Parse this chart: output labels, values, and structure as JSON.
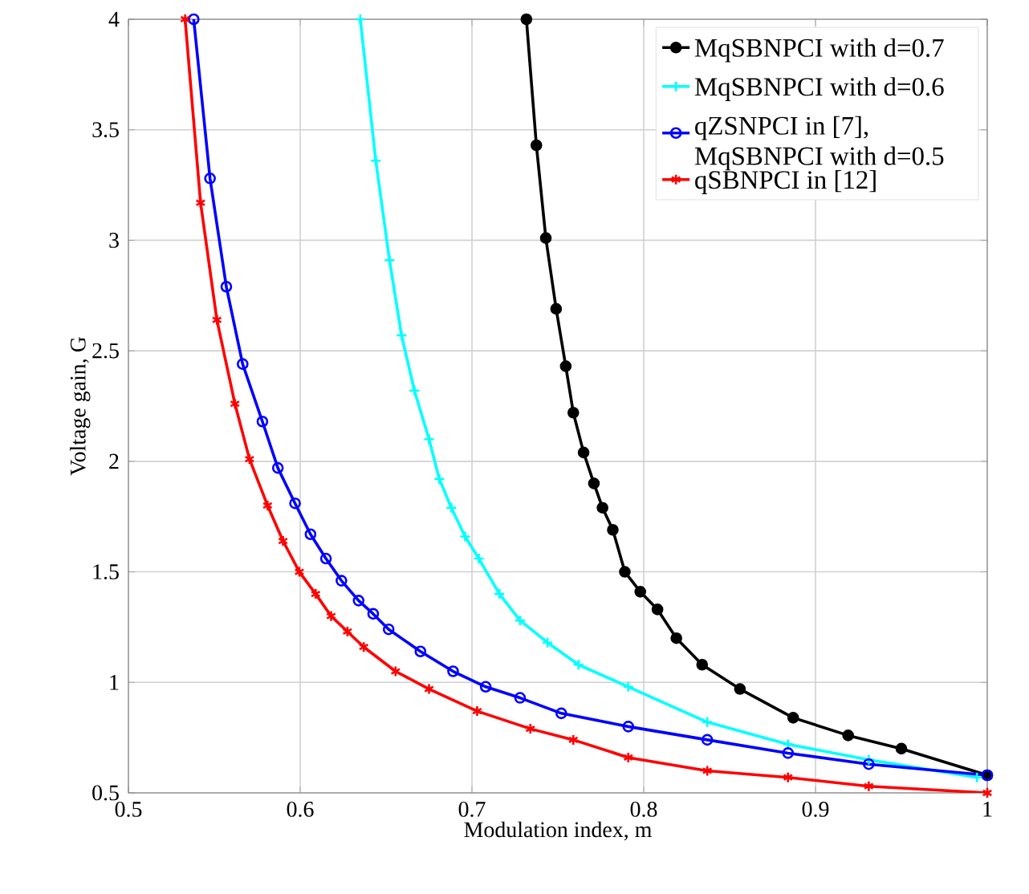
{
  "chart_data": {
    "type": "line",
    "xlabel": "Modulation index, m",
    "ylabel": "Voltage gain, G",
    "xlim": [
      0.5,
      1
    ],
    "ylim": [
      0.5,
      4
    ],
    "xticks": [
      0.5,
      0.6,
      0.7,
      0.8,
      0.9,
      1
    ],
    "yticks": [
      0.5,
      1,
      1.5,
      2,
      2.5,
      3,
      3.5,
      4
    ],
    "grid": true,
    "legend": "top right",
    "series": [
      {
        "name": "MqSBNPCI with d=0.7",
        "color": "#000000",
        "marker": "circle",
        "x": [
          0.7317,
          0.7375,
          0.743,
          0.749,
          0.7546,
          0.759,
          0.765,
          0.771,
          0.776,
          0.782,
          0.789,
          0.798,
          0.808,
          0.819,
          0.834,
          0.856,
          0.887,
          0.919,
          0.95,
          1.0
        ],
        "values": [
          4.0,
          3.43,
          3.01,
          2.69,
          2.43,
          2.22,
          2.04,
          1.9,
          1.79,
          1.69,
          1.5,
          1.41,
          1.33,
          1.2,
          1.08,
          0.97,
          0.84,
          0.76,
          0.7,
          0.58
        ]
      },
      {
        "name": "MqSBNPCI with d=0.6",
        "color": "#00ffff",
        "marker": "cross",
        "x": [
          0.635,
          0.644,
          0.652,
          0.659,
          0.6665,
          0.675,
          0.681,
          0.688,
          0.696,
          0.704,
          0.716,
          0.728,
          0.744,
          0.762,
          0.791,
          0.837,
          0.884,
          0.931,
          0.994
        ],
        "values": [
          4.0,
          3.36,
          2.91,
          2.57,
          2.32,
          2.1,
          1.92,
          1.79,
          1.66,
          1.56,
          1.4,
          1.28,
          1.18,
          1.08,
          0.98,
          0.82,
          0.72,
          0.65,
          0.57
        ]
      },
      {
        "name": "qZSNPCI in [7], MqSBNPCI with d=0.5",
        "color": "#0000ff",
        "marker": "circle_open",
        "x": [
          0.538,
          0.5475,
          0.557,
          0.5665,
          0.578,
          0.587,
          0.597,
          0.606,
          0.615,
          0.624,
          0.634,
          0.6425,
          0.6515,
          0.67,
          0.689,
          0.708,
          0.728,
          0.752,
          0.791,
          0.837,
          0.884,
          0.931,
          1.0
        ],
        "values": [
          4.0,
          3.28,
          2.79,
          2.44,
          2.18,
          1.97,
          1.81,
          1.67,
          1.56,
          1.46,
          1.37,
          1.31,
          1.24,
          1.14,
          1.05,
          0.98,
          0.93,
          0.86,
          0.8,
          0.74,
          0.68,
          0.63,
          0.58
        ]
      },
      {
        "name": "qSBNPCI in [12]",
        "color": "#ff0000",
        "marker": "cross",
        "x": [
          0.533,
          0.542,
          0.5515,
          0.562,
          0.5705,
          0.581,
          0.59,
          0.5995,
          0.609,
          0.618,
          0.6275,
          0.637,
          0.6555,
          0.675,
          0.703,
          0.734,
          0.759,
          0.791,
          0.837,
          0.884,
          0.931,
          1.0
        ],
        "values": [
          4.0,
          3.17,
          2.64,
          2.26,
          2.01,
          1.8,
          1.64,
          1.5,
          1.4,
          1.3,
          1.23,
          1.16,
          1.05,
          0.97,
          0.87,
          0.79,
          0.74,
          0.66,
          0.6,
          0.57,
          0.53,
          0.5
        ]
      }
    ]
  }
}
